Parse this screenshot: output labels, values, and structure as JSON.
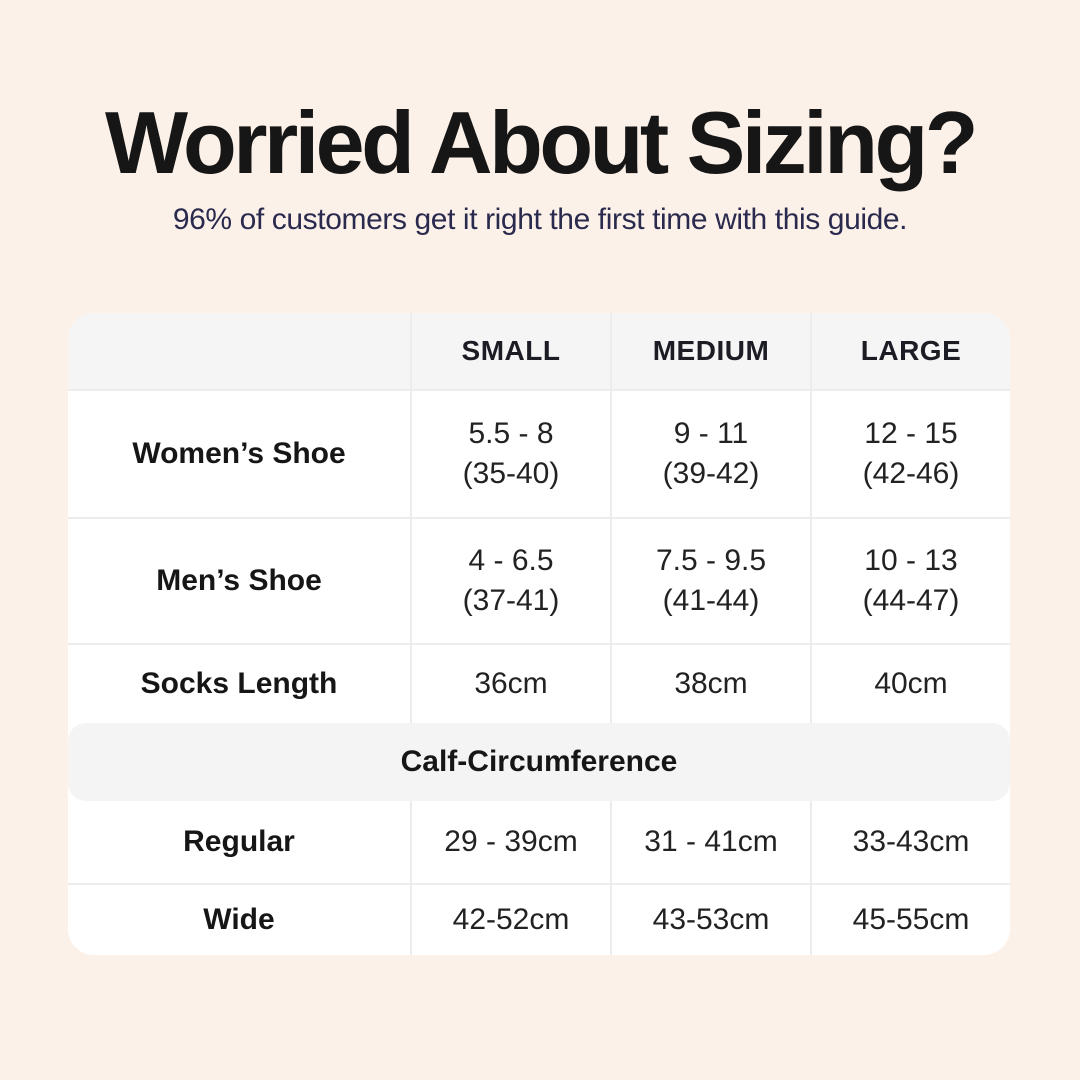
{
  "page": {
    "title": "Worried About Sizing?",
    "subtitle": "96% of customers get it right the first time with this guide."
  },
  "colors": {
    "background": "#fcf1e9",
    "card": "#ffffff",
    "header_bg": "#f5f5f6",
    "band_bg": "#f4f4f5",
    "divider": "#ececec",
    "title_text": "#161616",
    "subtitle_text": "#2a2a4e"
  },
  "size_table": {
    "columns": [
      "SMALL",
      "MEDIUM",
      "LARGE"
    ],
    "shoe_rows": [
      {
        "label": "Women’s Shoe",
        "values": [
          {
            "range": "5.5 - 8",
            "eu": "(35-40)"
          },
          {
            "range": "9 - 11",
            "eu": "(39-42)"
          },
          {
            "range": "12 - 15",
            "eu": "(42-46)"
          }
        ]
      },
      {
        "label": "Men’s Shoe",
        "values": [
          {
            "range": "4 - 6.5",
            "eu": "(37-41)"
          },
          {
            "range": "7.5 - 9.5",
            "eu": "(41-44)"
          },
          {
            "range": "10 - 13",
            "eu": "(44-47)"
          }
        ]
      }
    ],
    "socks_row": {
      "label": "Socks Length",
      "values": [
        "36cm",
        "38cm",
        "40cm"
      ]
    },
    "section_header": "Calf-Circumference",
    "calf_rows": [
      {
        "label": "Regular",
        "values": [
          "29 - 39cm",
          "31 - 41cm",
          "33-43cm"
        ]
      },
      {
        "label": "Wide",
        "values": [
          "42-52cm",
          "43-53cm",
          "45-55cm"
        ]
      }
    ]
  },
  "chart_data": {
    "type": "table",
    "title": "Worried About Sizing?",
    "subtitle": "96% of customers get it right the first time with this guide.",
    "columns": [
      "",
      "SMALL",
      "MEDIUM",
      "LARGE"
    ],
    "rows": [
      [
        "Women’s Shoe",
        "5.5 - 8 (35-40)",
        "9 - 11 (39-42)",
        "12 - 15 (42-46)"
      ],
      [
        "Men’s Shoe",
        "4 - 6.5 (37-41)",
        "7.5 - 9.5 (41-44)",
        "10 - 13 (44-47)"
      ],
      [
        "Socks Length",
        "36cm",
        "38cm",
        "40cm"
      ],
      [
        "Calf-Circumference",
        "",
        "",
        ""
      ],
      [
        "Regular",
        "29 - 39cm",
        "31 - 41cm",
        "33-43cm"
      ],
      [
        "Wide",
        "42-52cm",
        "43-53cm",
        "45-55cm"
      ]
    ]
  }
}
